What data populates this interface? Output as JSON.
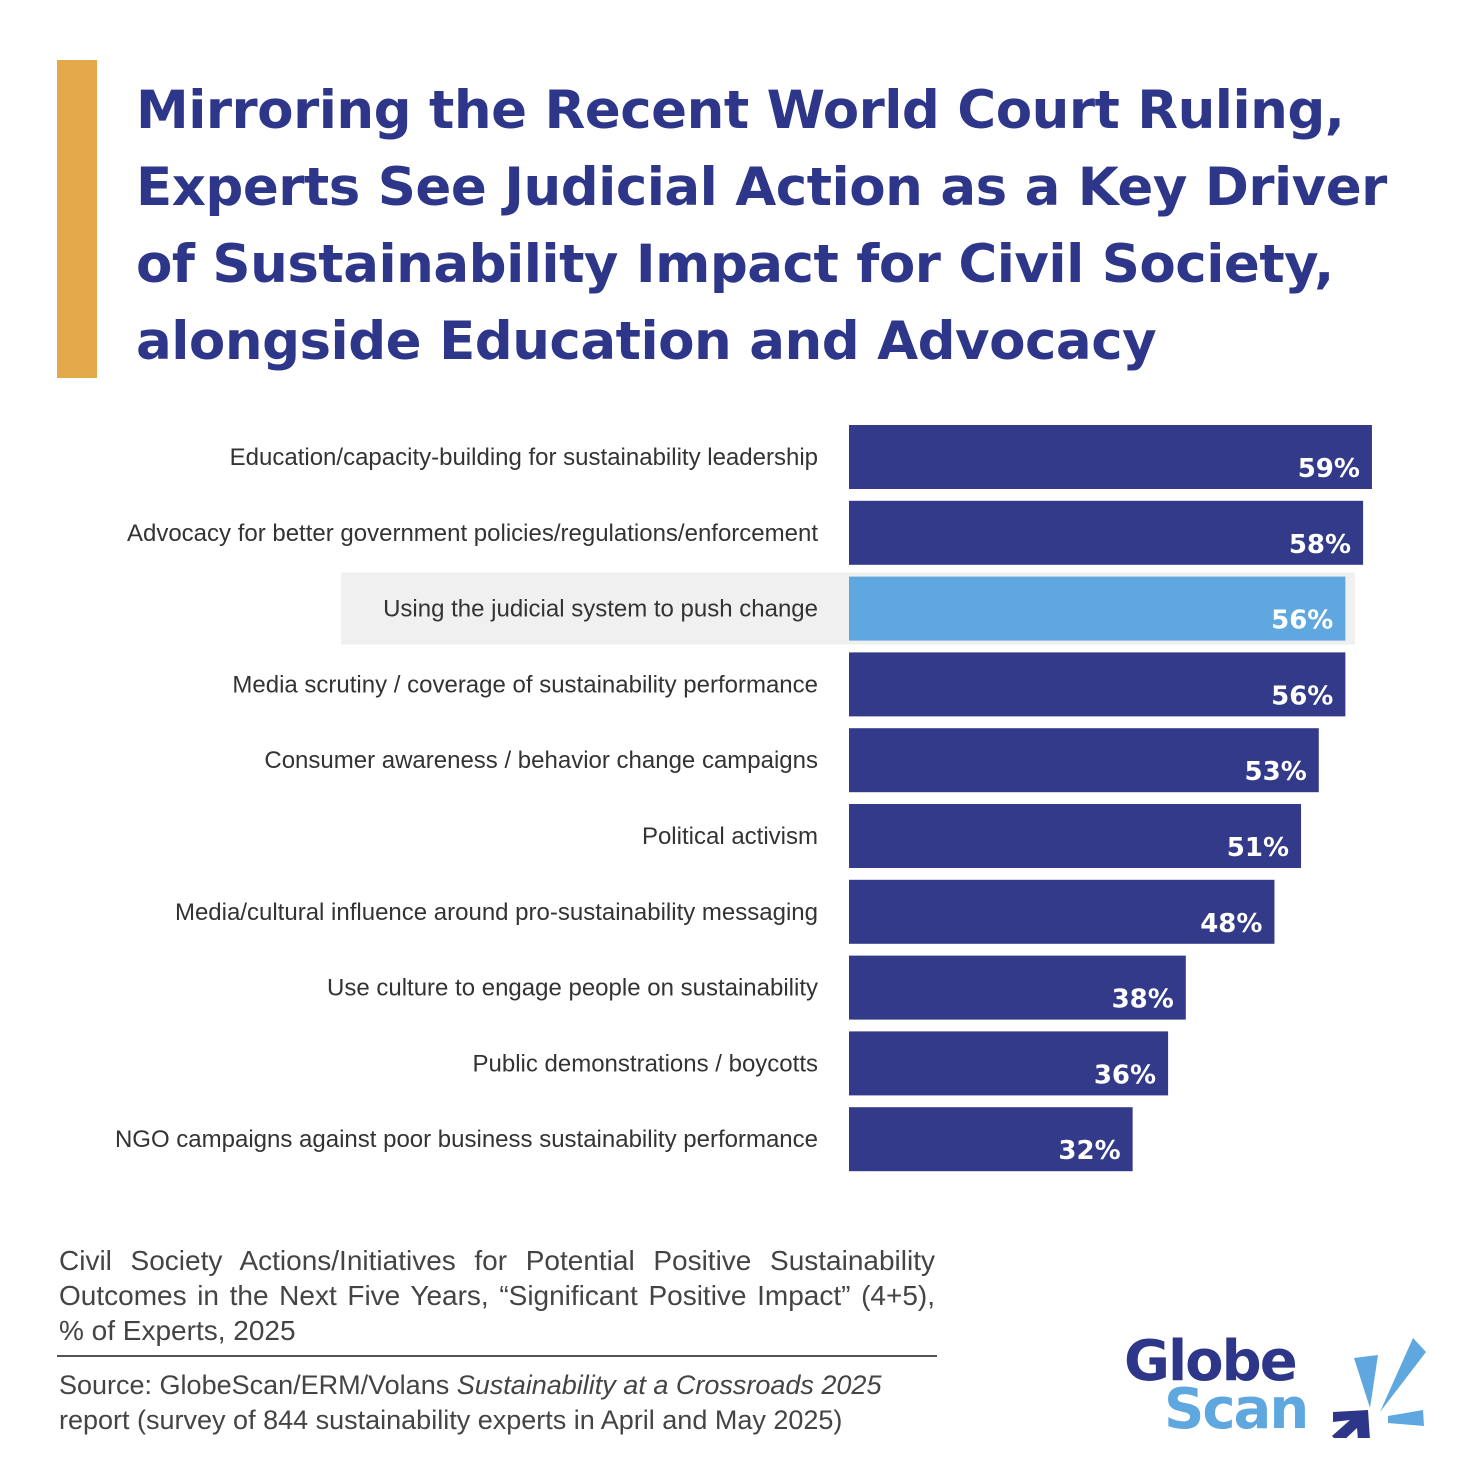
{
  "title": "Mirroring the Recent World Court Ruling, Experts See Judicial Action as a Key Driver of Sustainability Impact for Civil Society, alongside Education and Advocacy",
  "colors": {
    "accent_bar": "#e4a94a",
    "bar": "#333a8a",
    "highlight_bar": "#5fa7df",
    "highlight_bg": "#f0f0f0",
    "title": "#2e3689"
  },
  "chart_data": {
    "type": "bar",
    "orientation": "horizontal",
    "unit": "%",
    "categories": [
      "Education/capacity-building for sustainability leadership",
      "Advocacy for better government policies/regulations/enforcement",
      "Using the judicial system to push change",
      "Media scrutiny / coverage of sustainability performance",
      "Consumer awareness / behavior change campaigns",
      "Political activism",
      "Media/cultural influence around pro-sustainability messaging",
      "Use culture to engage people on sustainability",
      "Public demonstrations / boycotts",
      "NGO campaigns against poor business sustainability performance"
    ],
    "values": [
      59,
      58,
      56,
      56,
      53,
      51,
      48,
      38,
      36,
      32
    ],
    "data_labels": [
      "59%",
      "58%",
      "56%",
      "56%",
      "53%",
      "51%",
      "48%",
      "38%",
      "36%",
      "32%"
    ],
    "highlighted_category": "Using the judicial system to push change",
    "xlim": [
      0,
      66
    ],
    "grid": false
  },
  "caption": "Civil Society Actions/Initiatives for Potential Positive Sustainability Outcomes in the Next Five Years, “Significant Positive Impact” (4+5), % of Experts, 2025",
  "source": {
    "prefix": "Source: GlobeScan/ERM/Volans ",
    "report_title": "Sustainability at a Crossroads 2025",
    "suffix": " report (survey of 844 sustainability experts in April and May 2025)"
  },
  "logo": {
    "line1": "Globe",
    "line2": "Scan"
  }
}
